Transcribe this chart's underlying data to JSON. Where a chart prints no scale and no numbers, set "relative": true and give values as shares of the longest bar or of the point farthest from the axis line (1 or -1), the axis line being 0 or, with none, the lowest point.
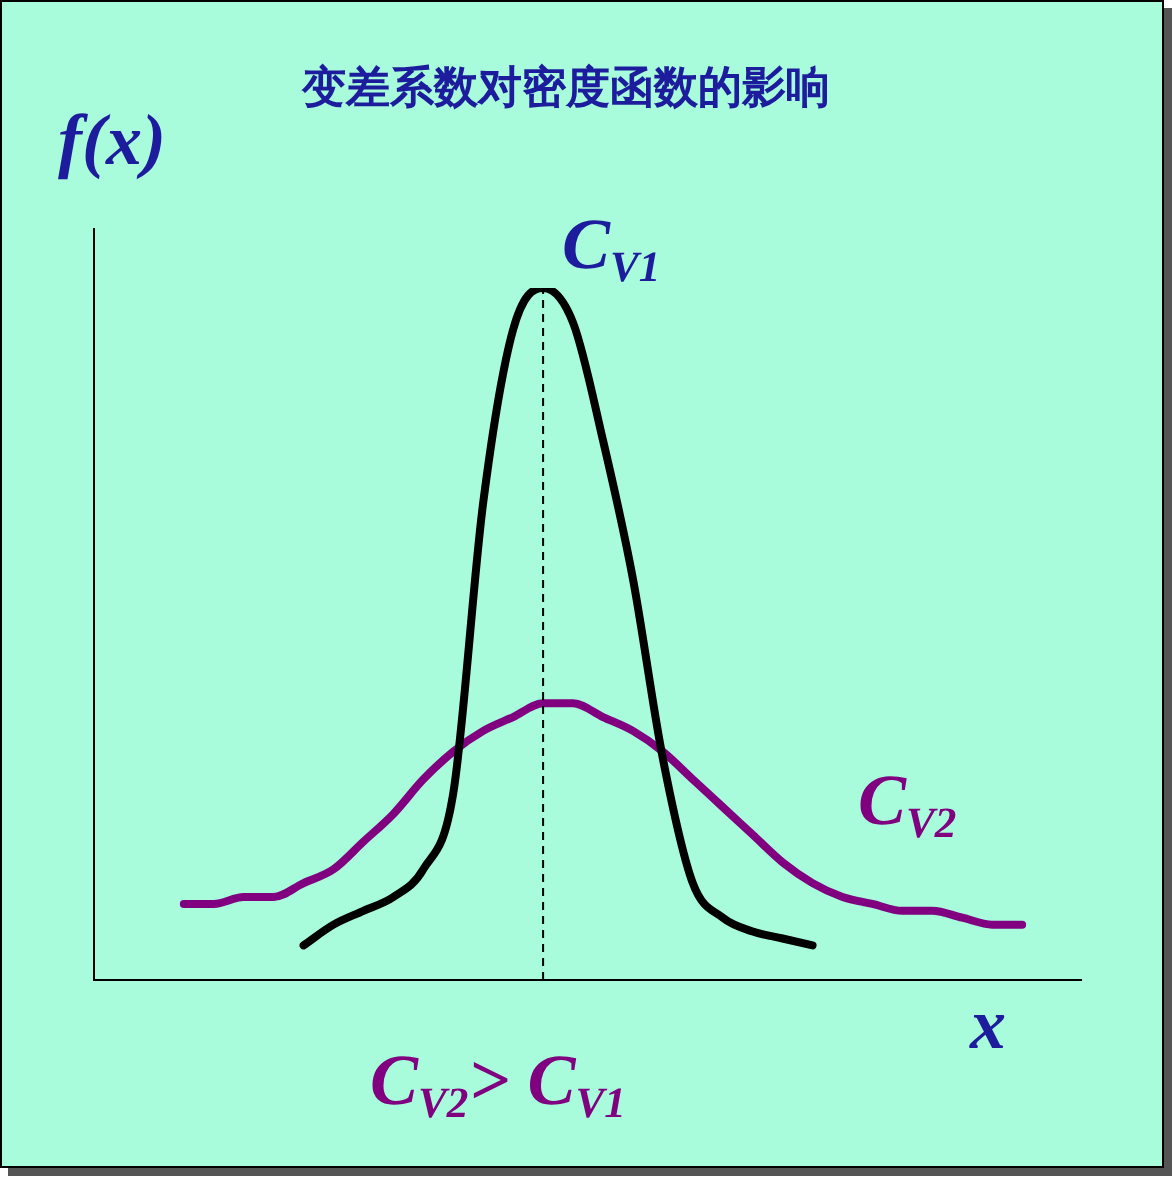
{
  "chart_data": {
    "type": "line",
    "relative": true,
    "title": "变差系数对密度函数的影响",
    "ylabel": "f(x)",
    "xlabel": "x",
    "categories": [
      null,
      null,
      null,
      null,
      null,
      null,
      null,
      null,
      null,
      null,
      null,
      null,
      null,
      null,
      null,
      null,
      null,
      null,
      null,
      null,
      null,
      null,
      null,
      null,
      null,
      null,
      null,
      null,
      null,
      null,
      null,
      null,
      null,
      null
    ],
    "series": [
      {
        "color": "#000000",
        "values": [
          null,
          null,
          null,
          null,
          null,
          null,
          null,
          0.05,
          0.08,
          0.1,
          0.12,
          0.16,
          0.27,
          0.69,
          0.94,
          1,
          0.95,
          0.78,
          0.58,
          0.32,
          0.14,
          0.09,
          0.07,
          0.06,
          0.05,
          null,
          null,
          null,
          null,
          null,
          null,
          null,
          null,
          null
        ]
      },
      {
        "color": "#800080",
        "values": [
          null,
          null,
          null,
          0.11,
          0.11,
          0.12,
          0.12,
          0.14,
          0.16,
          0.2,
          0.24,
          0.29,
          0.33,
          0.36,
          0.38,
          0.4,
          0.4,
          0.38,
          0.36,
          0.33,
          0.29,
          0.25,
          0.21,
          0.17,
          0.14,
          0.12,
          0.11,
          0.1,
          0.1,
          0.09,
          0.08,
          0.08,
          null,
          null
        ]
      }
    ],
    "annotations": [
      "C$_{V1}$",
      "C$_{V2}$",
      "C$_{V2}$> C$_{V1}$"
    ],
    "legend": false,
    "marker": "none",
    "line_style": "solid"
  }
}
